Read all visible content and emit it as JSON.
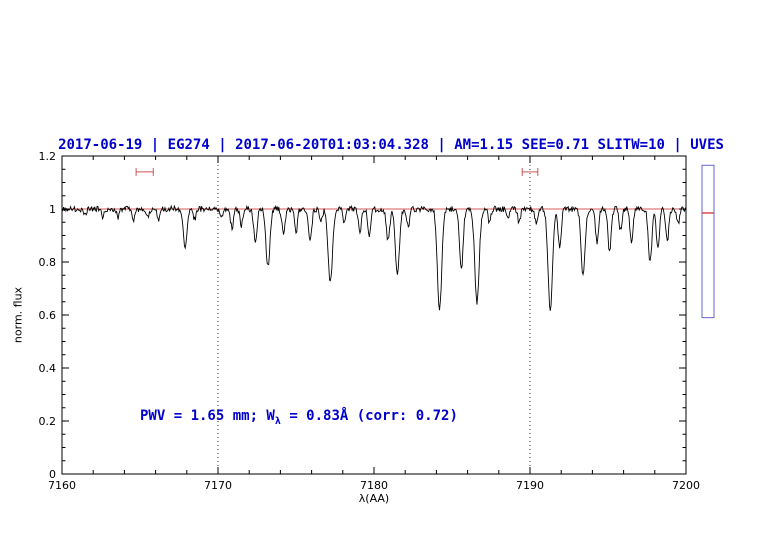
{
  "chart_data": {
    "type": "line",
    "title": "2017-06-19 | EG274 | 2017-06-20T01:03:04.328 | AM=1.15 SEE=0.71 SLITW=10 | UVES",
    "title_color": "#0000cc",
    "xlabel": "λ(AA)",
    "ylabel": "norm. flux",
    "xlim": [
      7160,
      7200
    ],
    "ylim": [
      0,
      1.2
    ],
    "xticks": [
      7160,
      7170,
      7180,
      7190,
      7200
    ],
    "xtick_labels": [
      "7160",
      "7170",
      "7180",
      "7190",
      "7200"
    ],
    "yticks": [
      0,
      0.2,
      0.4,
      0.6,
      0.8,
      1,
      1.2
    ],
    "ytick_labels": [
      "0",
      "0.2",
      "0.4",
      "0.6",
      "0.8",
      "1",
      "1.2"
    ],
    "x_minor_step": 2,
    "y_minor_step": 0.05,
    "grid": false,
    "continuum_flux": 1.0,
    "continuum_color": "#cc2222",
    "spectrum_color": "#000000",
    "noise_amplitude": 0.011,
    "sample_step": 0.05,
    "vlines": [
      7170,
      7190
    ],
    "range_markers": [
      {
        "x": 7165.3,
        "half_width": 0.55,
        "y": 1.14
      },
      {
        "x": 7190.0,
        "half_width": 0.5,
        "y": 1.14
      }
    ],
    "marker_color": "#cc5555",
    "side_gauge": {
      "flux_top": 1.165,
      "flux_bottom": 0.59,
      "marker_flux": 0.985,
      "border_color": "#6666cc",
      "marker_color": "#cc2222"
    },
    "annotation": {
      "prefix": "PWV = 1.65 mm; W",
      "sub": "λ",
      "suffix": " = 0.83Å (corr: 0.72)",
      "color": "#0000cc"
    },
    "absorption_lines": [
      {
        "c": 7161.5,
        "d": 0.025,
        "w": 0.12
      },
      {
        "c": 7162.6,
        "d": 0.03,
        "w": 0.12
      },
      {
        "c": 7163.6,
        "d": 0.03,
        "w": 0.12
      },
      {
        "c": 7164.6,
        "d": 0.04,
        "w": 0.15
      },
      {
        "c": 7165.5,
        "d": 0.03,
        "w": 0.12
      },
      {
        "c": 7166.2,
        "d": 0.04,
        "w": 0.13
      },
      {
        "c": 7167.9,
        "d": 0.14,
        "w": 0.18
      },
      {
        "c": 7168.5,
        "d": 0.04,
        "w": 0.12
      },
      {
        "c": 7170.2,
        "d": 0.04,
        "w": 0.12
      },
      {
        "c": 7170.9,
        "d": 0.07,
        "w": 0.14
      },
      {
        "c": 7171.5,
        "d": 0.06,
        "w": 0.13
      },
      {
        "c": 7172.4,
        "d": 0.12,
        "w": 0.15
      },
      {
        "c": 7173.2,
        "d": 0.22,
        "w": 0.18
      },
      {
        "c": 7174.2,
        "d": 0.1,
        "w": 0.14
      },
      {
        "c": 7175.0,
        "d": 0.09,
        "w": 0.13
      },
      {
        "c": 7175.9,
        "d": 0.12,
        "w": 0.15
      },
      {
        "c": 7176.6,
        "d": 0.05,
        "w": 0.12
      },
      {
        "c": 7177.2,
        "d": 0.28,
        "w": 0.2
      },
      {
        "c": 7178.1,
        "d": 0.05,
        "w": 0.12
      },
      {
        "c": 7179.1,
        "d": 0.08,
        "w": 0.14
      },
      {
        "c": 7179.7,
        "d": 0.1,
        "w": 0.14
      },
      {
        "c": 7180.9,
        "d": 0.12,
        "w": 0.15
      },
      {
        "c": 7181.5,
        "d": 0.25,
        "w": 0.18
      },
      {
        "c": 7182.2,
        "d": 0.07,
        "w": 0.13
      },
      {
        "c": 7184.2,
        "d": 0.38,
        "w": 0.2
      },
      {
        "c": 7185.6,
        "d": 0.23,
        "w": 0.16
      },
      {
        "c": 7186.6,
        "d": 0.35,
        "w": 0.2
      },
      {
        "c": 7187.4,
        "d": 0.05,
        "w": 0.12
      },
      {
        "c": 7188.6,
        "d": 0.04,
        "w": 0.12
      },
      {
        "c": 7189.3,
        "d": 0.05,
        "w": 0.12
      },
      {
        "c": 7190.4,
        "d": 0.05,
        "w": 0.12
      },
      {
        "c": 7191.3,
        "d": 0.38,
        "w": 0.2
      },
      {
        "c": 7191.9,
        "d": 0.15,
        "w": 0.14
      },
      {
        "c": 7193.4,
        "d": 0.25,
        "w": 0.18
      },
      {
        "c": 7194.3,
        "d": 0.13,
        "w": 0.14
      },
      {
        "c": 7195.1,
        "d": 0.16,
        "w": 0.15
      },
      {
        "c": 7195.8,
        "d": 0.08,
        "w": 0.13
      },
      {
        "c": 7196.5,
        "d": 0.12,
        "w": 0.14
      },
      {
        "c": 7197.7,
        "d": 0.2,
        "w": 0.16
      },
      {
        "c": 7198.2,
        "d": 0.15,
        "w": 0.14
      },
      {
        "c": 7198.8,
        "d": 0.12,
        "w": 0.14
      },
      {
        "c": 7199.5,
        "d": 0.06,
        "w": 0.12
      }
    ]
  }
}
